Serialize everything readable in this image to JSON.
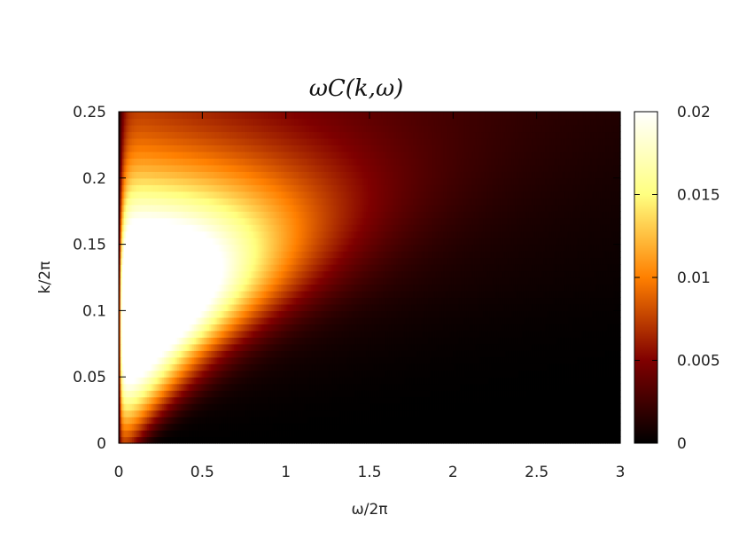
{
  "chart_data": {
    "type": "heatmap",
    "title": "ωC(k,ω)",
    "xlabel": "ω/2π",
    "ylabel": "k/2π",
    "xlim": [
      0,
      3
    ],
    "ylim": [
      0,
      0.25
    ],
    "x_ticks": [
      "0",
      "0.5",
      "1",
      "1.5",
      "2",
      "2.5",
      "3"
    ],
    "y_ticks": [
      "0",
      "0.05",
      "0.1",
      "0.15",
      "0.2",
      "0.25"
    ],
    "colorbar": {
      "range": [
        0,
        0.02
      ],
      "ticks": [
        "0",
        "0.005",
        "0.01",
        "0.015",
        "0.02"
      ],
      "colormap": "hot-afm"
    },
    "k_rows": 50,
    "omega_cols": 300,
    "peak": {
      "omega": 0.05,
      "k": 0.1,
      "value": 0.02
    }
  }
}
